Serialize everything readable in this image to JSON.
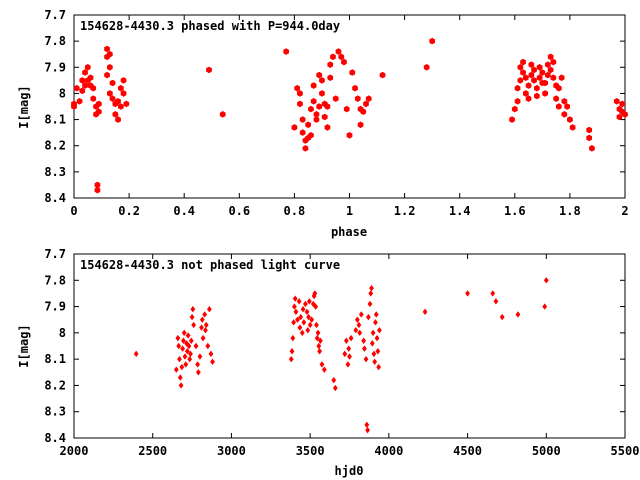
{
  "chart_data": [
    {
      "type": "scatter",
      "title": "154628-4430.3 phased with P=944.0day",
      "xlabel": "phase",
      "ylabel": "I[mag]",
      "xlim": [
        0,
        2
      ],
      "ylim": [
        8.4,
        7.7
      ],
      "y_inverted": true,
      "grid": false,
      "marker_color": "#ff0000",
      "marker": "filled-hexagon-large",
      "xticks": [
        "0",
        "0.2",
        "0.4",
        "0.6",
        "0.8",
        "1",
        "1.2",
        "1.4",
        "1.6",
        "1.8",
        "2"
      ],
      "yticks": [
        "7.7",
        "7.8",
        "7.9",
        "8",
        "8.1",
        "8.2",
        "8.3",
        "8.4"
      ],
      "points": [
        [
          0.0,
          8.05
        ],
        [
          0.0,
          8.04
        ],
        [
          0.01,
          7.98
        ],
        [
          0.02,
          8.03
        ],
        [
          0.03,
          7.99
        ],
        [
          0.03,
          7.95
        ],
        [
          0.04,
          7.97
        ],
        [
          0.04,
          7.92
        ],
        [
          0.05,
          7.9
        ],
        [
          0.05,
          7.95
        ],
        [
          0.06,
          7.94
        ],
        [
          0.06,
          7.97
        ],
        [
          0.07,
          7.98
        ],
        [
          0.07,
          8.02
        ],
        [
          0.08,
          8.05
        ],
        [
          0.08,
          8.08
        ],
        [
          0.09,
          8.04
        ],
        [
          0.09,
          8.07
        ],
        [
          0.085,
          8.35
        ],
        [
          0.085,
          8.37
        ],
        [
          0.12,
          7.86
        ],
        [
          0.12,
          7.83
        ],
        [
          0.13,
          7.85
        ],
        [
          0.13,
          7.9
        ],
        [
          0.12,
          7.93
        ],
        [
          0.14,
          7.96
        ],
        [
          0.13,
          8.0
        ],
        [
          0.14,
          8.02
        ],
        [
          0.15,
          8.04
        ],
        [
          0.15,
          8.08
        ],
        [
          0.16,
          8.1
        ],
        [
          0.16,
          8.03
        ],
        [
          0.17,
          8.05
        ],
        [
          0.17,
          7.98
        ],
        [
          0.18,
          7.95
        ],
        [
          0.18,
          8.0
        ],
        [
          0.19,
          8.04
        ],
        [
          0.49,
          7.91
        ],
        [
          0.54,
          8.08
        ],
        [
          0.77,
          7.84
        ],
        [
          0.8,
          8.13
        ],
        [
          0.81,
          7.98
        ],
        [
          0.82,
          8.0
        ],
        [
          0.82,
          8.04
        ],
        [
          0.83,
          8.1
        ],
        [
          0.83,
          8.15
        ],
        [
          0.84,
          8.18
        ],
        [
          0.84,
          8.21
        ],
        [
          0.85,
          8.17
        ],
        [
          0.85,
          8.12
        ],
        [
          0.86,
          8.16
        ],
        [
          0.86,
          8.06
        ],
        [
          0.87,
          8.03
        ],
        [
          0.87,
          7.97
        ],
        [
          0.88,
          8.08
        ],
        [
          0.88,
          8.1
        ],
        [
          0.89,
          8.05
        ],
        [
          0.89,
          7.93
        ],
        [
          0.9,
          7.95
        ],
        [
          0.9,
          8.0
        ],
        [
          0.91,
          8.04
        ],
        [
          0.91,
          8.09
        ],
        [
          0.92,
          8.13
        ],
        [
          0.92,
          8.05
        ],
        [
          0.93,
          7.89
        ],
        [
          0.93,
          7.94
        ],
        [
          0.94,
          7.86
        ],
        [
          0.95,
          8.02
        ],
        [
          0.96,
          7.84
        ],
        [
          0.97,
          7.86
        ],
        [
          0.98,
          7.88
        ],
        [
          0.99,
          8.06
        ],
        [
          1.0,
          8.16
        ],
        [
          1.01,
          7.92
        ],
        [
          1.02,
          7.98
        ],
        [
          1.03,
          8.02
        ],
        [
          1.04,
          8.06
        ],
        [
          1.04,
          8.12
        ],
        [
          1.05,
          8.07
        ],
        [
          1.06,
          8.04
        ],
        [
          1.07,
          8.02
        ],
        [
          1.12,
          7.93
        ],
        [
          1.28,
          7.9
        ],
        [
          1.3,
          7.8
        ],
        [
          1.59,
          8.1
        ],
        [
          1.6,
          8.06
        ],
        [
          1.61,
          8.03
        ],
        [
          1.61,
          7.98
        ],
        [
          1.62,
          7.95
        ],
        [
          1.62,
          7.9
        ],
        [
          1.63,
          7.92
        ],
        [
          1.63,
          7.88
        ],
        [
          1.64,
          7.94
        ],
        [
          1.64,
          8.0
        ],
        [
          1.65,
          8.02
        ],
        [
          1.65,
          7.97
        ],
        [
          1.66,
          7.93
        ],
        [
          1.66,
          7.89
        ],
        [
          1.67,
          7.91
        ],
        [
          1.67,
          7.95
        ],
        [
          1.68,
          7.98
        ],
        [
          1.68,
          8.01
        ],
        [
          1.69,
          7.94
        ],
        [
          1.69,
          7.9
        ],
        [
          1.7,
          7.92
        ],
        [
          1.7,
          7.96
        ],
        [
          1.71,
          8.0
        ],
        [
          1.71,
          7.96
        ],
        [
          1.72,
          7.89
        ],
        [
          1.72,
          7.93
        ],
        [
          1.73,
          7.86
        ],
        [
          1.73,
          7.91
        ],
        [
          1.74,
          7.88
        ],
        [
          1.74,
          7.94
        ],
        [
          1.75,
          7.97
        ],
        [
          1.75,
          8.02
        ],
        [
          1.76,
          8.05
        ],
        [
          1.76,
          7.98
        ],
        [
          1.77,
          7.94
        ],
        [
          1.78,
          8.03
        ],
        [
          1.78,
          8.08
        ],
        [
          1.79,
          8.05
        ],
        [
          1.8,
          8.1
        ],
        [
          1.81,
          8.13
        ],
        [
          1.87,
          8.14
        ],
        [
          1.87,
          8.17
        ],
        [
          1.88,
          8.21
        ],
        [
          1.97,
          8.03
        ],
        [
          1.98,
          8.06
        ],
        [
          1.98,
          8.09
        ],
        [
          1.99,
          8.07
        ],
        [
          1.99,
          8.04
        ],
        [
          2.0,
          8.08
        ]
      ]
    },
    {
      "type": "scatter",
      "title": "154628-4430.3 not phased light curve",
      "xlabel": "hjd0",
      "ylabel": "I[mag]",
      "xlim": [
        2000,
        5500
      ],
      "ylim": [
        8.4,
        7.7
      ],
      "y_inverted": true,
      "grid": false,
      "marker_color": "#ff0000",
      "marker": "filled-diamond-small",
      "xticks": [
        "2000",
        "2500",
        "3000",
        "3500",
        "4000",
        "4500",
        "5000",
        "5500"
      ],
      "yticks": [
        "7.7",
        "7.8",
        "7.9",
        "8",
        "8.1",
        "8.2",
        "8.3",
        "8.4"
      ],
      "points": [
        [
          2395,
          8.08
        ],
        [
          2650,
          8.14
        ],
        [
          2660,
          8.02
        ],
        [
          2665,
          8.05
        ],
        [
          2670,
          8.1
        ],
        [
          2675,
          8.17
        ],
        [
          2680,
          8.2
        ],
        [
          2685,
          8.13
        ],
        [
          2690,
          8.06
        ],
        [
          2695,
          8.03
        ],
        [
          2700,
          8.0
        ],
        [
          2705,
          8.09
        ],
        [
          2710,
          8.12
        ],
        [
          2715,
          8.04
        ],
        [
          2720,
          8.07
        ],
        [
          2725,
          8.01
        ],
        [
          2730,
          8.05
        ],
        [
          2735,
          8.1
        ],
        [
          2740,
          8.08
        ],
        [
          2745,
          8.03
        ],
        [
          2750,
          7.94
        ],
        [
          2755,
          7.91
        ],
        [
          2760,
          7.97
        ],
        [
          2775,
          8.05
        ],
        [
          2785,
          8.12
        ],
        [
          2790,
          8.15
        ],
        [
          2800,
          8.09
        ],
        [
          2810,
          7.98
        ],
        [
          2815,
          7.95
        ],
        [
          2820,
          8.02
        ],
        [
          2830,
          7.93
        ],
        [
          2835,
          7.99
        ],
        [
          2840,
          7.97
        ],
        [
          2850,
          8.05
        ],
        [
          2860,
          7.91
        ],
        [
          2870,
          8.08
        ],
        [
          2880,
          8.11
        ],
        [
          3380,
          8.1
        ],
        [
          3385,
          8.07
        ],
        [
          3390,
          8.02
        ],
        [
          3395,
          7.96
        ],
        [
          3400,
          7.9
        ],
        [
          3405,
          7.87
        ],
        [
          3410,
          7.92
        ],
        [
          3420,
          7.95
        ],
        [
          3430,
          7.88
        ],
        [
          3435,
          7.98
        ],
        [
          3440,
          7.94
        ],
        [
          3450,
          8.0
        ],
        [
          3455,
          7.91
        ],
        [
          3460,
          7.96
        ],
        [
          3470,
          7.89
        ],
        [
          3480,
          7.92
        ],
        [
          3485,
          7.99
        ],
        [
          3490,
          7.94
        ],
        [
          3495,
          7.88
        ],
        [
          3500,
          7.97
        ],
        [
          3510,
          7.95
        ],
        [
          3520,
          7.89
        ],
        [
          3525,
          7.86
        ],
        [
          3530,
          7.85
        ],
        [
          3535,
          7.9
        ],
        [
          3540,
          7.97
        ],
        [
          3545,
          8.02
        ],
        [
          3550,
          8.0
        ],
        [
          3555,
          8.05
        ],
        [
          3560,
          8.07
        ],
        [
          3565,
          8.03
        ],
        [
          3575,
          8.12
        ],
        [
          3590,
          8.14
        ],
        [
          3650,
          8.18
        ],
        [
          3660,
          8.21
        ],
        [
          3720,
          8.08
        ],
        [
          3730,
          8.03
        ],
        [
          3740,
          8.12
        ],
        [
          3745,
          8.06
        ],
        [
          3750,
          8.09
        ],
        [
          3760,
          8.02
        ],
        [
          3790,
          7.99
        ],
        [
          3800,
          7.95
        ],
        [
          3810,
          7.97
        ],
        [
          3815,
          8.0
        ],
        [
          3825,
          7.93
        ],
        [
          3840,
          8.03
        ],
        [
          3845,
          8.06
        ],
        [
          3855,
          8.1
        ],
        [
          3860,
          8.35
        ],
        [
          3865,
          8.37
        ],
        [
          3870,
          7.94
        ],
        [
          3880,
          7.89
        ],
        [
          3885,
          7.85
        ],
        [
          3890,
          7.83
        ],
        [
          3895,
          8.04
        ],
        [
          3900,
          8.0
        ],
        [
          3905,
          8.08
        ],
        [
          3910,
          8.11
        ],
        [
          3915,
          7.96
        ],
        [
          3920,
          7.93
        ],
        [
          3925,
          8.02
        ],
        [
          3930,
          8.07
        ],
        [
          3935,
          8.13
        ],
        [
          3940,
          7.99
        ],
        [
          4230,
          7.92
        ],
        [
          4500,
          7.85
        ],
        [
          4660,
          7.85
        ],
        [
          4680,
          7.88
        ],
        [
          4720,
          7.94
        ],
        [
          4820,
          7.93
        ],
        [
          4990,
          7.9
        ],
        [
          5000,
          7.8
        ]
      ]
    }
  ]
}
